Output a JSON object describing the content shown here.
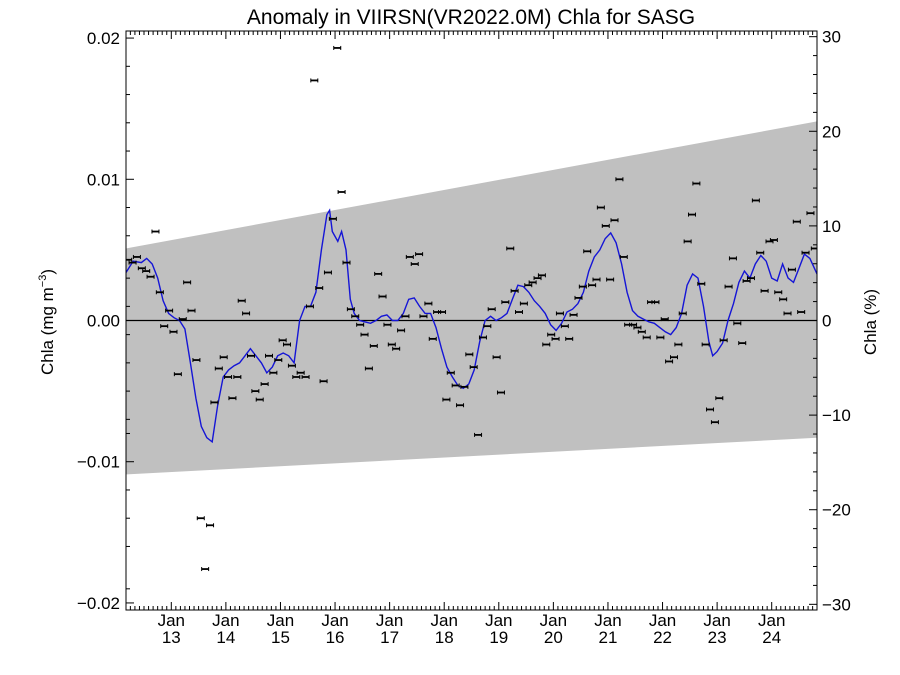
{
  "chart_data": {
    "type": "scatter",
    "title": "Anomaly in VIIRSN(VR2022.0M) Chla for SASG",
    "ylabel_left_prefix": "Chla (mg m",
    "ylabel_left_exp": "−3",
    "ylabel_left_suffix": ")",
    "ylabel_right": "Chla (%)",
    "xlim": [
      2012.17,
      2024.83
    ],
    "ylim_left": [
      -0.0205,
      0.0205
    ],
    "ylim_right": [
      -30.6,
      30.6
    ],
    "yticks_left": [
      {
        "value": 0.02,
        "label": "0.02"
      },
      {
        "value": 0.01,
        "label": "0.01"
      },
      {
        "value": 0.0,
        "label": "0.00"
      },
      {
        "value": -0.01,
        "label": "−0.01"
      },
      {
        "value": -0.02,
        "label": "−0.02"
      }
    ],
    "yticks_right": [
      {
        "value": 30,
        "label": "30"
      },
      {
        "value": 20,
        "label": "20"
      },
      {
        "value": 10,
        "label": "10"
      },
      {
        "value": 0,
        "label": "0"
      },
      {
        "value": -10,
        "label": "−10"
      },
      {
        "value": -20,
        "label": "−20"
      },
      {
        "value": -30,
        "label": "−30"
      }
    ],
    "xticks": [
      {
        "value": 2013,
        "line1": "Jan",
        "line2": "13"
      },
      {
        "value": 2014,
        "line1": "Jan",
        "line2": "14"
      },
      {
        "value": 2015,
        "line1": "Jan",
        "line2": "15"
      },
      {
        "value": 2016,
        "line1": "Jan",
        "line2": "16"
      },
      {
        "value": 2017,
        "line1": "Jan",
        "line2": "17"
      },
      {
        "value": 2018,
        "line1": "Jan",
        "line2": "18"
      },
      {
        "value": 2019,
        "line1": "Jan",
        "line2": "19"
      },
      {
        "value": 2020,
        "line1": "Jan",
        "line2": "20"
      },
      {
        "value": 2021,
        "line1": "Jan",
        "line2": "21"
      },
      {
        "value": 2022,
        "line1": "Jan",
        "line2": "22"
      },
      {
        "value": 2023,
        "line1": "Jan",
        "line2": "23"
      },
      {
        "value": 2024,
        "line1": "Jan",
        "line2": "24"
      }
    ],
    "band": {
      "x": [
        2012.17,
        2024.83
      ],
      "upper": [
        0.0051,
        0.0141
      ],
      "lower": [
        -0.0109,
        -0.0083
      ]
    },
    "colors": {
      "band": "#c0c0c0",
      "line": "#1515d6",
      "points": "#000000",
      "zero": "#000000"
    },
    "points": [
      [
        2012.21,
        0.0043
      ],
      [
        2012.29,
        0.0041
      ],
      [
        2012.37,
        0.0045
      ],
      [
        2012.46,
        0.0037
      ],
      [
        2012.54,
        0.0035
      ],
      [
        2012.62,
        0.0031
      ],
      [
        2012.71,
        0.0063
      ],
      [
        2012.79,
        0.002
      ],
      [
        2012.87,
        -0.0004
      ],
      [
        2012.96,
        0.0007
      ],
      [
        2013.04,
        -0.0008
      ],
      [
        2013.12,
        -0.0038
      ],
      [
        2013.21,
        0.0001
      ],
      [
        2013.29,
        0.0027
      ],
      [
        2013.37,
        0.0007
      ],
      [
        2013.46,
        -0.0028
      ],
      [
        2013.54,
        -0.014
      ],
      [
        2013.62,
        -0.0176
      ],
      [
        2013.71,
        -0.0145
      ],
      [
        2013.79,
        -0.0058
      ],
      [
        2013.87,
        -0.0034
      ],
      [
        2013.96,
        -0.0026
      ],
      [
        2014.04,
        -0.004
      ],
      [
        2014.12,
        -0.0055
      ],
      [
        2014.21,
        -0.004
      ],
      [
        2014.29,
        0.0014
      ],
      [
        2014.37,
        0.0005
      ],
      [
        2014.46,
        -0.0025
      ],
      [
        2014.54,
        -0.005
      ],
      [
        2014.62,
        -0.0056
      ],
      [
        2014.71,
        -0.0045
      ],
      [
        2014.79,
        -0.0025
      ],
      [
        2014.87,
        -0.0037
      ],
      [
        2014.96,
        -0.0028
      ],
      [
        2015.04,
        -0.0014
      ],
      [
        2015.12,
        -0.0017
      ],
      [
        2015.21,
        -0.0032
      ],
      [
        2015.29,
        -0.004
      ],
      [
        2015.37,
        -0.0037
      ],
      [
        2015.46,
        -0.004
      ],
      [
        2015.54,
        0.001
      ],
      [
        2015.62,
        0.017
      ],
      [
        2015.71,
        0.0023
      ],
      [
        2015.79,
        -0.0043
      ],
      [
        2015.87,
        0.0034
      ],
      [
        2015.96,
        0.0072
      ],
      [
        2016.04,
        0.0193
      ],
      [
        2016.12,
        0.0091
      ],
      [
        2016.21,
        0.0041
      ],
      [
        2016.29,
        0.0008
      ],
      [
        2016.37,
        0.0003
      ],
      [
        2016.46,
        -0.0003
      ],
      [
        2016.54,
        -0.001
      ],
      [
        2016.62,
        -0.0034
      ],
      [
        2016.71,
        -0.0018
      ],
      [
        2016.79,
        0.0033
      ],
      [
        2016.87,
        0.0017
      ],
      [
        2016.96,
        -0.0003
      ],
      [
        2017.04,
        -0.0017
      ],
      [
        2017.12,
        -0.002
      ],
      [
        2017.21,
        -0.0007
      ],
      [
        2017.29,
        0.0003
      ],
      [
        2017.37,
        0.0045
      ],
      [
        2017.46,
        0.004
      ],
      [
        2017.54,
        0.0047
      ],
      [
        2017.62,
        0.0003
      ],
      [
        2017.71,
        0.0012
      ],
      [
        2017.79,
        -0.0013
      ],
      [
        2017.87,
        0.0006
      ],
      [
        2017.96,
        0.0006
      ],
      [
        2018.04,
        -0.0056
      ],
      [
        2018.12,
        -0.0037
      ],
      [
        2018.21,
        -0.0046
      ],
      [
        2018.29,
        -0.006
      ],
      [
        2018.37,
        -0.0047
      ],
      [
        2018.46,
        -0.0024
      ],
      [
        2018.54,
        -0.0033
      ],
      [
        2018.62,
        -0.0081
      ],
      [
        2018.71,
        -0.0012
      ],
      [
        2018.79,
        -0.0004
      ],
      [
        2018.87,
        0.0008
      ],
      [
        2018.96,
        -0.0026
      ],
      [
        2019.04,
        -0.0051
      ],
      [
        2019.12,
        0.0013
      ],
      [
        2019.21,
        0.0051
      ],
      [
        2019.29,
        0.0021
      ],
      [
        2019.37,
        0.0006
      ],
      [
        2019.46,
        0.0012
      ],
      [
        2019.54,
        0.0025
      ],
      [
        2019.62,
        0.0027
      ],
      [
        2019.71,
        0.003
      ],
      [
        2019.79,
        0.0032
      ],
      [
        2019.87,
        -0.0017
      ],
      [
        2019.96,
        -0.001
      ],
      [
        2020.04,
        -0.0013
      ],
      [
        2020.12,
        0.0005
      ],
      [
        2020.21,
        -0.0004
      ],
      [
        2020.29,
        -0.0013
      ],
      [
        2020.37,
        0.0004
      ],
      [
        2020.46,
        0.0016
      ],
      [
        2020.54,
        0.0024
      ],
      [
        2020.62,
        0.0049
      ],
      [
        2020.71,
        0.0025
      ],
      [
        2020.79,
        0.0029
      ],
      [
        2020.87,
        0.008
      ],
      [
        2020.96,
        0.0067
      ],
      [
        2021.04,
        0.0029
      ],
      [
        2021.12,
        0.0071
      ],
      [
        2021.21,
        0.01
      ],
      [
        2021.29,
        0.0045
      ],
      [
        2021.37,
        -0.0003
      ],
      [
        2021.46,
        -0.0003
      ],
      [
        2021.54,
        -0.0005
      ],
      [
        2021.62,
        -0.0008
      ],
      [
        2021.71,
        -0.0012
      ],
      [
        2021.79,
        0.0013
      ],
      [
        2021.87,
        0.0013
      ],
      [
        2021.96,
        -0.0012
      ],
      [
        2022.04,
        0.0001
      ],
      [
        2022.12,
        -0.0029
      ],
      [
        2022.21,
        -0.0026
      ],
      [
        2022.29,
        -0.0017
      ],
      [
        2022.37,
        0.0005
      ],
      [
        2022.46,
        0.0056
      ],
      [
        2022.54,
        0.0075
      ],
      [
        2022.62,
        0.0097
      ],
      [
        2022.71,
        0.0026
      ],
      [
        2022.79,
        -0.0017
      ],
      [
        2022.87,
        -0.0063
      ],
      [
        2022.96,
        -0.0072
      ],
      [
        2023.04,
        -0.0055
      ],
      [
        2023.12,
        -0.0014
      ],
      [
        2023.21,
        0.0024
      ],
      [
        2023.29,
        0.0044
      ],
      [
        2023.37,
        -0.0002
      ],
      [
        2023.46,
        -0.0016
      ],
      [
        2023.54,
        0.0028
      ],
      [
        2023.62,
        0.003
      ],
      [
        2023.71,
        0.0085
      ],
      [
        2023.79,
        0.0048
      ],
      [
        2023.87,
        0.0021
      ],
      [
        2023.96,
        0.0056
      ],
      [
        2024.04,
        0.0057
      ],
      [
        2024.12,
        0.002
      ],
      [
        2024.21,
        0.0015
      ],
      [
        2024.29,
        0.0005
      ],
      [
        2024.37,
        0.0036
      ],
      [
        2024.46,
        0.007
      ],
      [
        2024.54,
        0.0006
      ],
      [
        2024.62,
        0.0048
      ],
      [
        2024.71,
        0.0076
      ],
      [
        2024.79,
        0.0051
      ]
    ],
    "line": [
      [
        2012.17,
        0.0034
      ],
      [
        2012.3,
        0.0042
      ],
      [
        2012.45,
        0.0041
      ],
      [
        2012.55,
        0.0044
      ],
      [
        2012.65,
        0.004
      ],
      [
        2012.75,
        0.003
      ],
      [
        2012.85,
        0.0014
      ],
      [
        2012.95,
        0.0005
      ],
      [
        2013.05,
        0.0002
      ],
      [
        2013.15,
        0.0
      ],
      [
        2013.25,
        -0.0006
      ],
      [
        2013.35,
        -0.003
      ],
      [
        2013.45,
        -0.0055
      ],
      [
        2013.55,
        -0.0075
      ],
      [
        2013.65,
        -0.0083
      ],
      [
        2013.75,
        -0.0086
      ],
      [
        2013.85,
        -0.006
      ],
      [
        2013.95,
        -0.004
      ],
      [
        2014.05,
        -0.0035
      ],
      [
        2014.15,
        -0.0032
      ],
      [
        2014.25,
        -0.003
      ],
      [
        2014.35,
        -0.0025
      ],
      [
        2014.45,
        -0.002
      ],
      [
        2014.55,
        -0.0025
      ],
      [
        2014.65,
        -0.003
      ],
      [
        2014.75,
        -0.0037
      ],
      [
        2014.85,
        -0.0033
      ],
      [
        2014.95,
        -0.0025
      ],
      [
        2015.05,
        -0.0023
      ],
      [
        2015.15,
        -0.0025
      ],
      [
        2015.25,
        -0.003
      ],
      [
        2015.35,
        0.0
      ],
      [
        2015.45,
        0.001
      ],
      [
        2015.55,
        0.001
      ],
      [
        2015.65,
        0.002
      ],
      [
        2015.75,
        0.005
      ],
      [
        2015.85,
        0.0075
      ],
      [
        2015.9,
        0.0078
      ],
      [
        2015.95,
        0.0063
      ],
      [
        2016.05,
        0.0056
      ],
      [
        2016.12,
        0.0063
      ],
      [
        2016.2,
        0.005
      ],
      [
        2016.28,
        0.0015
      ],
      [
        2016.35,
        0.0005
      ],
      [
        2016.45,
        0.0
      ],
      [
        2016.55,
        -0.0001
      ],
      [
        2016.65,
        -0.0002
      ],
      [
        2016.75,
        0.0
      ],
      [
        2016.85,
        0.0003
      ],
      [
        2016.95,
        0.0004
      ],
      [
        2017.05,
        0.0
      ],
      [
        2017.15,
        0.0
      ],
      [
        2017.25,
        0.0005
      ],
      [
        2017.35,
        0.0015
      ],
      [
        2017.45,
        0.0016
      ],
      [
        2017.55,
        0.001
      ],
      [
        2017.65,
        0.0005
      ],
      [
        2017.75,
        0.0005
      ],
      [
        2017.85,
        -0.0005
      ],
      [
        2017.95,
        -0.002
      ],
      [
        2018.05,
        -0.0033
      ],
      [
        2018.15,
        -0.004
      ],
      [
        2018.25,
        -0.0046
      ],
      [
        2018.35,
        -0.0048
      ],
      [
        2018.45,
        -0.0045
      ],
      [
        2018.55,
        -0.0035
      ],
      [
        2018.65,
        -0.0015
      ],
      [
        2018.75,
        0.0
      ],
      [
        2018.85,
        0.0003
      ],
      [
        2018.95,
        0.0
      ],
      [
        2019.05,
        0.0002
      ],
      [
        2019.15,
        0.0005
      ],
      [
        2019.25,
        0.0015
      ],
      [
        2019.35,
        0.0025
      ],
      [
        2019.45,
        0.0024
      ],
      [
        2019.55,
        0.002
      ],
      [
        2019.65,
        0.0014
      ],
      [
        2019.75,
        0.001
      ],
      [
        2019.85,
        0.0005
      ],
      [
        2019.95,
        -0.0003
      ],
      [
        2020.05,
        -0.0007
      ],
      [
        2020.15,
        -0.0002
      ],
      [
        2020.25,
        0.0006
      ],
      [
        2020.35,
        0.0008
      ],
      [
        2020.45,
        0.0012
      ],
      [
        2020.55,
        0.002
      ],
      [
        2020.65,
        0.0035
      ],
      [
        2020.75,
        0.0045
      ],
      [
        2020.85,
        0.005
      ],
      [
        2020.95,
        0.0058
      ],
      [
        2021.05,
        0.0062
      ],
      [
        2021.15,
        0.0055
      ],
      [
        2021.25,
        0.004
      ],
      [
        2021.35,
        0.002
      ],
      [
        2021.45,
        0.0007
      ],
      [
        2021.55,
        0.0003
      ],
      [
        2021.65,
        0.0001
      ],
      [
        2021.75,
        -0.0001
      ],
      [
        2021.85,
        -0.0002
      ],
      [
        2021.95,
        -0.0005
      ],
      [
        2022.05,
        -0.0008
      ],
      [
        2022.15,
        -0.001
      ],
      [
        2022.25,
        -0.0005
      ],
      [
        2022.35,
        0.0005
      ],
      [
        2022.45,
        0.0025
      ],
      [
        2022.55,
        0.0033
      ],
      [
        2022.65,
        0.003
      ],
      [
        2022.75,
        0.001
      ],
      [
        2022.85,
        -0.0015
      ],
      [
        2022.92,
        -0.0025
      ],
      [
        2023.0,
        -0.0022
      ],
      [
        2023.1,
        -0.0016
      ],
      [
        2023.2,
        0.0
      ],
      [
        2023.3,
        0.0012
      ],
      [
        2023.4,
        0.0027
      ],
      [
        2023.5,
        0.0035
      ],
      [
        2023.6,
        0.003
      ],
      [
        2023.7,
        0.004
      ],
      [
        2023.8,
        0.0046
      ],
      [
        2023.9,
        0.0042
      ],
      [
        2024.0,
        0.003
      ],
      [
        2024.1,
        0.0028
      ],
      [
        2024.2,
        0.004
      ],
      [
        2024.3,
        0.003
      ],
      [
        2024.4,
        0.0027
      ],
      [
        2024.5,
        0.0037
      ],
      [
        2024.6,
        0.0047
      ],
      [
        2024.7,
        0.0044
      ],
      [
        2024.83,
        0.0033
      ]
    ]
  }
}
